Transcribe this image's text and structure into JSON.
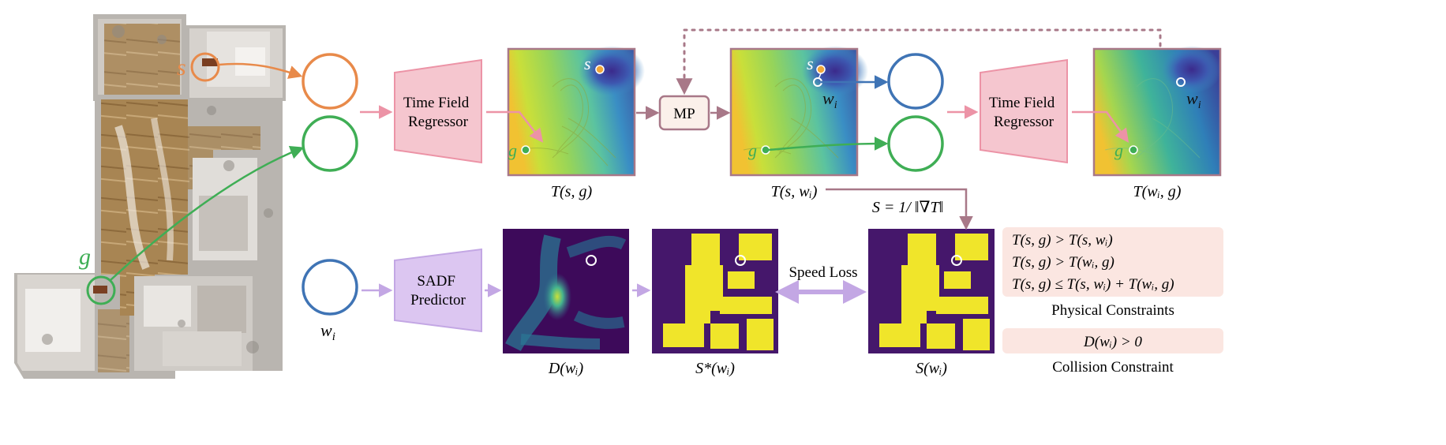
{
  "modules": {
    "time_field_regressor_1": [
      "Time Field",
      "Regressor"
    ],
    "time_field_regressor_2": [
      "Time Field",
      "Regressor"
    ],
    "sadf_predictor": [
      "SADF",
      "Predictor"
    ],
    "mp": "MP"
  },
  "map_labels": {
    "start": "s",
    "goal": "g"
  },
  "thumb_labels": {
    "waypoint": "w",
    "waypoint_sub": "i"
  },
  "field_labels": {
    "t_s_g": "T(s, g)",
    "t_s_wi": "T(s, wᵢ)",
    "t_wi_g": "T(wᵢ, g)",
    "d_wi": "D(wᵢ)",
    "s_star_wi": "S*(wᵢ)",
    "s_wi": "S(wᵢ)"
  },
  "marker_labels": {
    "s": "s",
    "g": "g",
    "wi": "w",
    "wi_sub": "i"
  },
  "speed_formula": "S = 1/ ‖∇T‖",
  "speed_loss": "Speed Loss",
  "physical_constraints": {
    "lines": [
      "T(s, g) > T(s, wᵢ)",
      "T(s, g) > T(wᵢ, g)",
      "T(s, g) ≤ T(s, wᵢ) + T(wᵢ, g)"
    ],
    "caption": "Physical Constraints"
  },
  "collision_constraint": {
    "line": "D(wᵢ) > 0",
    "caption": "Collision Constraint"
  },
  "colors": {
    "orange": "#e88a4a",
    "green": "#3fae55",
    "blue": "#3f74b5",
    "pink_box": "#f5c6cf",
    "pink_arrow": "#ec93a6",
    "purple_box": "#dcc6f1",
    "purple_arrow": "#c3a7e4",
    "mauve": "#a87888",
    "constraint_bg": "#fbe6e1"
  }
}
